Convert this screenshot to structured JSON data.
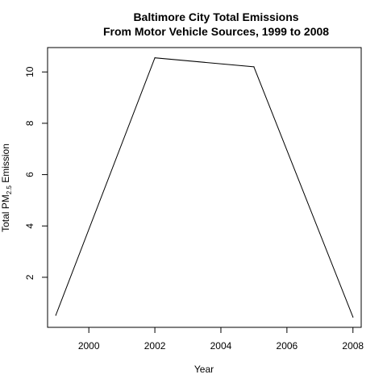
{
  "chart_data": {
    "type": "line",
    "title": "Baltimore City Total Emissions",
    "subtitle": "From Motor Vehicle Sources, 1999 to 2008",
    "xlabel": "Year",
    "ylabel": {
      "prefix": "Total PM",
      "subscript": "2.5",
      "suffix": " Emission"
    },
    "x": [
      1999,
      2002,
      2005,
      2008
    ],
    "series": [
      {
        "values": [
          0.52,
          10.55,
          10.2,
          0.45
        ]
      }
    ],
    "xlim": [
      1998.75,
      2008.25
    ],
    "ylim": [
      0.05,
      10.95
    ],
    "x_ticks": [
      2000,
      2002,
      2004,
      2006,
      2008
    ],
    "y_ticks": [
      2,
      4,
      6,
      8,
      10
    ],
    "x_tick_labels": [
      "2000",
      "2002",
      "2004",
      "2006",
      "2008"
    ],
    "y_tick_labels": [
      "2",
      "4",
      "6",
      "8",
      "10"
    ],
    "grid": false,
    "line_color": "#000000"
  }
}
